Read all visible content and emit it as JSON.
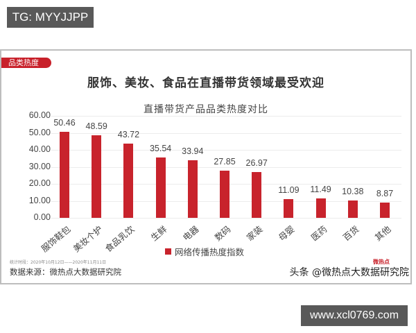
{
  "overlay": {
    "top_badge": "TG: MYYJJPP",
    "bottom_badge": "www.xcl0769.com"
  },
  "card": {
    "tag": "品类热度",
    "title": "服饰、美妆、食品在直播带货领域最受欢迎",
    "footnote": "统计时段：2020年10月12日——2020年11月11日",
    "source": "数据来源：微热点大数据研究院",
    "watermark": "头条 @微热点大数据研究院",
    "watermark_logo": "微热点"
  },
  "colors": {
    "bar": "#c8232c",
    "tag": "#c8202a",
    "badge_bg": "#595959"
  },
  "chart_data": {
    "type": "bar",
    "title": "直播带货产品品类热度对比",
    "xlabel": "",
    "ylabel": "",
    "ylim": [
      0,
      60
    ],
    "yticks": [
      "0.00",
      "10.00",
      "20.00",
      "30.00",
      "40.00",
      "50.00",
      "60.00"
    ],
    "grid": true,
    "legend_position": "bottom",
    "categories": [
      "服饰鞋包",
      "美妆个护",
      "食品乳饮",
      "生鲜",
      "电器",
      "数码",
      "家装",
      "母婴",
      "医药",
      "百货",
      "其他"
    ],
    "series": [
      {
        "name": "网络传播热度指数",
        "values": [
          50.46,
          48.59,
          43.72,
          35.54,
          33.94,
          27.85,
          26.97,
          11.09,
          11.49,
          10.38,
          8.87
        ],
        "labels": [
          "50.46",
          "48.59",
          "43.72",
          "35.54",
          "33.94",
          "27.85",
          "26.97",
          "11.09",
          "11.49",
          "10.38",
          "8.87"
        ]
      }
    ]
  }
}
